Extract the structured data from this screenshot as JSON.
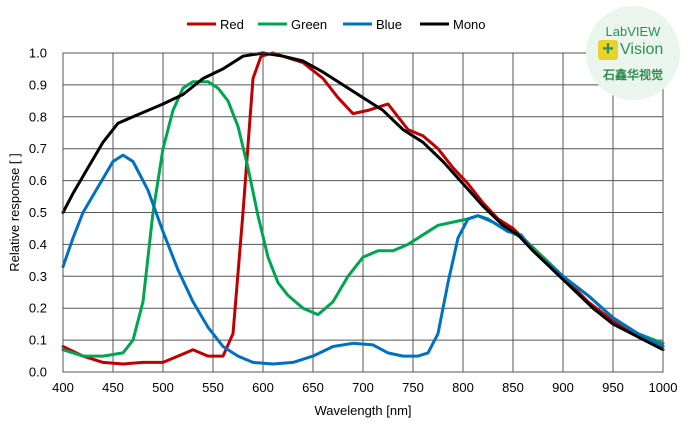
{
  "chart_data": {
    "type": "line",
    "xlabel": "Wavelength [nm]",
    "ylabel": "Relative response [ ]",
    "xlim": [
      400,
      1000
    ],
    "ylim": [
      0,
      1.0
    ],
    "x_ticks": [
      "400",
      "450",
      "500",
      "550",
      "600",
      "650",
      "700",
      "750",
      "800",
      "850",
      "900",
      "950",
      "1000"
    ],
    "y_ticks": [
      "0.0",
      "0.1",
      "0.2",
      "0.3",
      "0.4",
      "0.5",
      "0.6",
      "0.7",
      "0.8",
      "0.9",
      "1.0"
    ],
    "grid": true,
    "legend_position": "top",
    "series": [
      {
        "name": "Red",
        "color": "#c00000",
        "points": [
          [
            400,
            0.08
          ],
          [
            420,
            0.05
          ],
          [
            440,
            0.03
          ],
          [
            460,
            0.025
          ],
          [
            480,
            0.03
          ],
          [
            500,
            0.03
          ],
          [
            515,
            0.05
          ],
          [
            530,
            0.07
          ],
          [
            545,
            0.05
          ],
          [
            560,
            0.05
          ],
          [
            570,
            0.12
          ],
          [
            580,
            0.5
          ],
          [
            590,
            0.92
          ],
          [
            598,
            0.99
          ],
          [
            610,
            1.0
          ],
          [
            625,
            0.985
          ],
          [
            640,
            0.97
          ],
          [
            660,
            0.92
          ],
          [
            675,
            0.86
          ],
          [
            690,
            0.81
          ],
          [
            705,
            0.82
          ],
          [
            715,
            0.83
          ],
          [
            725,
            0.84
          ],
          [
            735,
            0.8
          ],
          [
            745,
            0.76
          ],
          [
            760,
            0.74
          ],
          [
            775,
            0.7
          ],
          [
            790,
            0.64
          ],
          [
            805,
            0.59
          ],
          [
            820,
            0.53
          ],
          [
            835,
            0.48
          ],
          [
            850,
            0.45
          ],
          [
            870,
            0.39
          ],
          [
            900,
            0.3
          ],
          [
            925,
            0.22
          ],
          [
            950,
            0.16
          ],
          [
            975,
            0.12
          ],
          [
            1000,
            0.08
          ]
        ]
      },
      {
        "name": "Green",
        "color": "#00a550",
        "points": [
          [
            400,
            0.07
          ],
          [
            420,
            0.05
          ],
          [
            440,
            0.05
          ],
          [
            460,
            0.06
          ],
          [
            470,
            0.1
          ],
          [
            480,
            0.22
          ],
          [
            490,
            0.5
          ],
          [
            500,
            0.7
          ],
          [
            510,
            0.82
          ],
          [
            520,
            0.89
          ],
          [
            530,
            0.91
          ],
          [
            545,
            0.91
          ],
          [
            555,
            0.89
          ],
          [
            565,
            0.85
          ],
          [
            575,
            0.77
          ],
          [
            585,
            0.64
          ],
          [
            595,
            0.49
          ],
          [
            605,
            0.36
          ],
          [
            615,
            0.28
          ],
          [
            625,
            0.24
          ],
          [
            640,
            0.2
          ],
          [
            655,
            0.18
          ],
          [
            670,
            0.22
          ],
          [
            685,
            0.3
          ],
          [
            700,
            0.36
          ],
          [
            715,
            0.38
          ],
          [
            730,
            0.38
          ],
          [
            745,
            0.4
          ],
          [
            760,
            0.43
          ],
          [
            775,
            0.46
          ],
          [
            790,
            0.47
          ],
          [
            805,
            0.48
          ],
          [
            815,
            0.49
          ],
          [
            825,
            0.48
          ],
          [
            840,
            0.45
          ],
          [
            860,
            0.42
          ],
          [
            880,
            0.36
          ],
          [
            900,
            0.3
          ],
          [
            925,
            0.24
          ],
          [
            950,
            0.17
          ],
          [
            975,
            0.12
          ],
          [
            1000,
            0.09
          ]
        ]
      },
      {
        "name": "Blue",
        "color": "#0070c0",
        "points": [
          [
            400,
            0.33
          ],
          [
            410,
            0.42
          ],
          [
            420,
            0.5
          ],
          [
            435,
            0.58
          ],
          [
            450,
            0.66
          ],
          [
            460,
            0.68
          ],
          [
            470,
            0.66
          ],
          [
            485,
            0.57
          ],
          [
            500,
            0.44
          ],
          [
            515,
            0.32
          ],
          [
            530,
            0.22
          ],
          [
            545,
            0.14
          ],
          [
            560,
            0.08
          ],
          [
            575,
            0.05
          ],
          [
            590,
            0.03
          ],
          [
            610,
            0.025
          ],
          [
            630,
            0.03
          ],
          [
            650,
            0.05
          ],
          [
            670,
            0.08
          ],
          [
            690,
            0.09
          ],
          [
            710,
            0.085
          ],
          [
            725,
            0.06
          ],
          [
            740,
            0.05
          ],
          [
            755,
            0.05
          ],
          [
            765,
            0.06
          ],
          [
            775,
            0.12
          ],
          [
            785,
            0.28
          ],
          [
            795,
            0.42
          ],
          [
            805,
            0.48
          ],
          [
            815,
            0.49
          ],
          [
            830,
            0.47
          ],
          [
            845,
            0.44
          ],
          [
            858,
            0.43
          ],
          [
            870,
            0.38
          ],
          [
            885,
            0.34
          ],
          [
            900,
            0.3
          ],
          [
            925,
            0.24
          ],
          [
            950,
            0.17
          ],
          [
            975,
            0.12
          ],
          [
            1000,
            0.08
          ]
        ]
      },
      {
        "name": "Mono",
        "color": "#000000",
        "points": [
          [
            400,
            0.5
          ],
          [
            410,
            0.56
          ],
          [
            425,
            0.64
          ],
          [
            440,
            0.72
          ],
          [
            455,
            0.78
          ],
          [
            470,
            0.8
          ],
          [
            485,
            0.82
          ],
          [
            500,
            0.84
          ],
          [
            520,
            0.87
          ],
          [
            540,
            0.92
          ],
          [
            560,
            0.95
          ],
          [
            580,
            0.99
          ],
          [
            600,
            1.0
          ],
          [
            620,
            0.99
          ],
          [
            640,
            0.975
          ],
          [
            660,
            0.94
          ],
          [
            680,
            0.9
          ],
          [
            700,
            0.86
          ],
          [
            720,
            0.82
          ],
          [
            740,
            0.76
          ],
          [
            760,
            0.72
          ],
          [
            780,
            0.66
          ],
          [
            800,
            0.59
          ],
          [
            820,
            0.52
          ],
          [
            840,
            0.46
          ],
          [
            855,
            0.43
          ],
          [
            870,
            0.38
          ],
          [
            890,
            0.32
          ],
          [
            910,
            0.26
          ],
          [
            930,
            0.2
          ],
          [
            950,
            0.15
          ],
          [
            975,
            0.11
          ],
          [
            1000,
            0.07
          ]
        ]
      }
    ]
  },
  "logo": {
    "line1": "LabVIEW",
    "plus": "+",
    "line2": "Vision",
    "line3": "石鑫华视觉"
  }
}
